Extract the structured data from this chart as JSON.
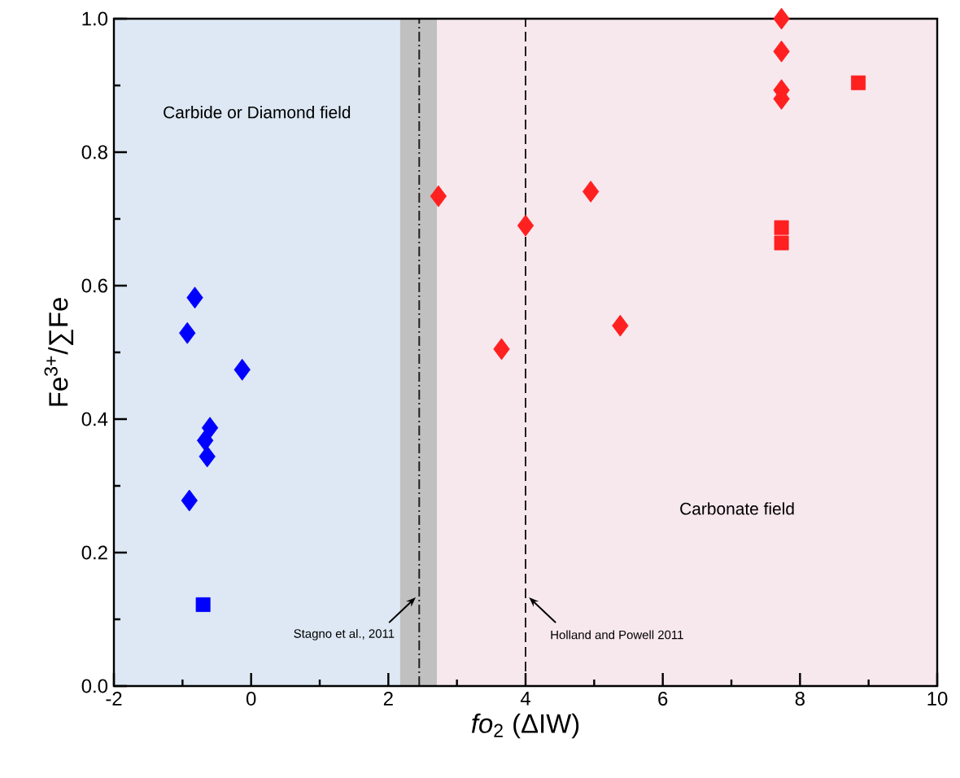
{
  "chart_data": {
    "type": "scatter",
    "xlabel": "*fo*$_{2}$ (ΔIW)",
    "ylabel": "Fe$^{3+}$/∑Fe",
    "xlim": [
      -2,
      10
    ],
    "ylim": [
      0,
      1.0
    ],
    "xticks": [
      -2,
      0,
      2,
      4,
      6,
      8,
      10
    ],
    "yticks": [
      {
        "value": 0,
        "label": "0.0"
      },
      {
        "value": 0.2,
        "label": "0.2"
      },
      {
        "value": 0.4,
        "label": "0.4"
      },
      {
        "value": 0.6,
        "label": "0.6"
      },
      {
        "value": 0.8,
        "label": "0.8"
      },
      {
        "value": 1.0,
        "label": "1.0"
      }
    ],
    "series": [
      {
        "color": "#0000ff",
        "marker": "diamond",
        "x": [
          -0.82,
          -0.93,
          -0.13,
          -0.6,
          -0.67,
          -0.64,
          -0.9
        ],
        "values": [
          0.582,
          0.529,
          0.474,
          0.387,
          0.368,
          0.344,
          0.278
        ]
      },
      {
        "color": "#0000ff",
        "marker": "square",
        "x": [
          -0.7
        ],
        "values": [
          0.122
        ]
      },
      {
        "color": "#ff2020",
        "marker": "diamond",
        "x": [
          2.73,
          4.0,
          4.95,
          5.38,
          3.65,
          7.73,
          7.73,
          7.73,
          7.73
        ],
        "values": [
          0.734,
          0.69,
          0.741,
          0.54,
          0.505,
          1.0,
          0.951,
          0.893,
          0.88
        ]
      },
      {
        "color": "#ff2020",
        "marker": "square",
        "x": [
          8.85,
          7.73,
          7.73
        ],
        "values": [
          0.904,
          0.687,
          0.664
        ]
      }
    ],
    "bands": [
      {
        "axis": "x",
        "from": -2,
        "to": 2.17,
        "label": "Carbide or Diamond field",
        "color": "#dde8f4"
      },
      {
        "axis": "x",
        "from": 2.17,
        "to": 2.71,
        "color": "#c0c0c0"
      },
      {
        "axis": "x",
        "from": 2.71,
        "to": 10,
        "label": "Carbonate field",
        "color": "#f7e8ee"
      }
    ],
    "ref_lines": [
      {
        "axis": "x",
        "value": 2.45,
        "label": "Stagno et al., 2011",
        "line_style": "dashdot",
        "color": "#231f20"
      },
      {
        "axis": "x",
        "value": 4.0,
        "label": "Holland and Powell 2011",
        "line_style": "dashed",
        "color": "#231f20"
      }
    ]
  }
}
